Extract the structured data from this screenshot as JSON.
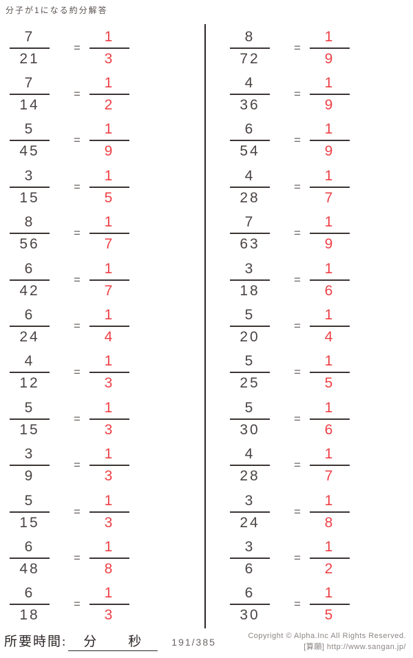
{
  "title": "分子が1になる約分解答",
  "equals_sign": "=",
  "colors": {
    "answer_red": "#ee4046",
    "ink": "#4a4443",
    "bar": "#3a3433"
  },
  "columns": [
    {
      "problems": [
        {
          "num": "7",
          "den": "21",
          "ans_num": "1",
          "ans_den": "3"
        },
        {
          "num": "7",
          "den": "14",
          "ans_num": "1",
          "ans_den": "2"
        },
        {
          "num": "5",
          "den": "45",
          "ans_num": "1",
          "ans_den": "9"
        },
        {
          "num": "3",
          "den": "15",
          "ans_num": "1",
          "ans_den": "5"
        },
        {
          "num": "8",
          "den": "56",
          "ans_num": "1",
          "ans_den": "7"
        },
        {
          "num": "6",
          "den": "42",
          "ans_num": "1",
          "ans_den": "7"
        },
        {
          "num": "6",
          "den": "24",
          "ans_num": "1",
          "ans_den": "4"
        },
        {
          "num": "4",
          "den": "12",
          "ans_num": "1",
          "ans_den": "3"
        },
        {
          "num": "5",
          "den": "15",
          "ans_num": "1",
          "ans_den": "3"
        },
        {
          "num": "3",
          "den": "9",
          "ans_num": "1",
          "ans_den": "3"
        },
        {
          "num": "5",
          "den": "15",
          "ans_num": "1",
          "ans_den": "3"
        },
        {
          "num": "6",
          "den": "48",
          "ans_num": "1",
          "ans_den": "8"
        },
        {
          "num": "6",
          "den": "18",
          "ans_num": "1",
          "ans_den": "3"
        }
      ]
    },
    {
      "problems": [
        {
          "num": "8",
          "den": "72",
          "ans_num": "1",
          "ans_den": "9"
        },
        {
          "num": "4",
          "den": "36",
          "ans_num": "1",
          "ans_den": "9"
        },
        {
          "num": "6",
          "den": "54",
          "ans_num": "1",
          "ans_den": "9"
        },
        {
          "num": "4",
          "den": "28",
          "ans_num": "1",
          "ans_den": "7"
        },
        {
          "num": "7",
          "den": "63",
          "ans_num": "1",
          "ans_den": "9"
        },
        {
          "num": "3",
          "den": "18",
          "ans_num": "1",
          "ans_den": "6"
        },
        {
          "num": "5",
          "den": "20",
          "ans_num": "1",
          "ans_den": "4"
        },
        {
          "num": "5",
          "den": "25",
          "ans_num": "1",
          "ans_den": "5"
        },
        {
          "num": "5",
          "den": "30",
          "ans_num": "1",
          "ans_den": "6"
        },
        {
          "num": "4",
          "den": "28",
          "ans_num": "1",
          "ans_den": "7"
        },
        {
          "num": "3",
          "den": "24",
          "ans_num": "1",
          "ans_den": "8"
        },
        {
          "num": "3",
          "den": "6",
          "ans_num": "1",
          "ans_den": "2"
        },
        {
          "num": "6",
          "den": "30",
          "ans_num": "1",
          "ans_den": "5"
        }
      ]
    }
  ],
  "footer": {
    "time_label": "所要時間:",
    "minutes_label": "分",
    "seconds_label": "秒",
    "page": "191/385",
    "copyright_line1": "Copyright ©  Alpha.Inc All Rights Reserved.",
    "copyright_line2": "[算願] http://www.sangan.jp/"
  }
}
